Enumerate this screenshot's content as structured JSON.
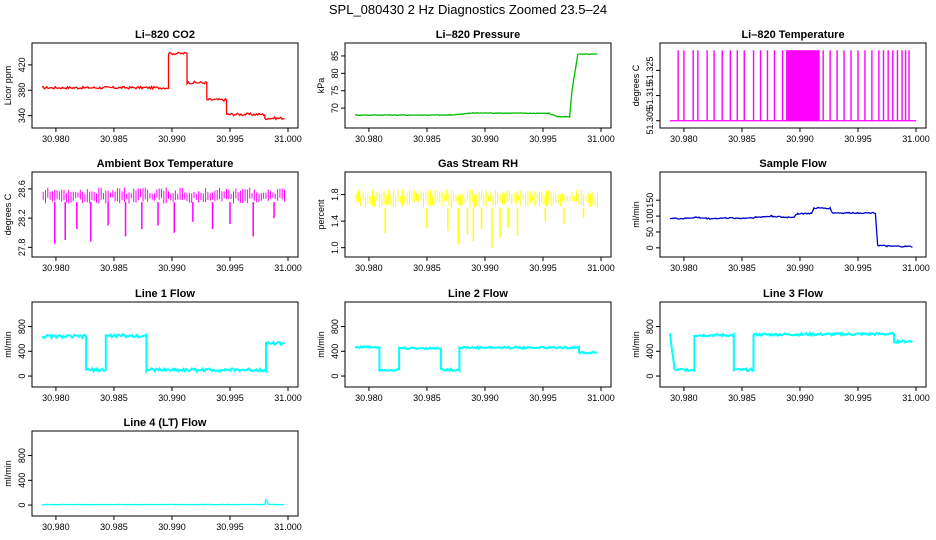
{
  "page": {
    "title": "SPL_080430  2 Hz Diagnostics Zoomed 23.5–24"
  },
  "chart_data": [
    {
      "id": "co2",
      "type": "line",
      "title": "Li–820 CO2",
      "ylabel": "Licor ppm",
      "color": "#ff0000",
      "xlim": [
        30.9788,
        31.0
      ],
      "xticks": [
        30.98,
        30.985,
        30.99,
        30.995,
        31.0
      ],
      "xtick_labels": [
        "30.980",
        "30.985",
        "30.990",
        "30.995",
        "31.000"
      ],
      "ylim": [
        330,
        445
      ],
      "yticks": [
        340,
        380,
        420
      ],
      "ytick_labels": [
        "340",
        "380",
        "420"
      ],
      "series": [
        {
          "name": "CO2",
          "noise": 2,
          "points": [
            [
              30.9788,
              384
            ],
            [
              30.9897,
              384
            ],
            [
              30.9897,
              438
            ],
            [
              30.9913,
              438
            ],
            [
              30.9913,
              392
            ],
            [
              30.993,
              392
            ],
            [
              30.993,
              365
            ],
            [
              30.9947,
              365
            ],
            [
              30.9947,
              342
            ],
            [
              30.998,
              342
            ],
            [
              30.998,
              336
            ],
            [
              30.9997,
              336
            ]
          ]
        }
      ]
    },
    {
      "id": "pressure",
      "type": "line",
      "title": "Li–820 Pressure",
      "ylabel": "kPa",
      "color": "#00bb00",
      "xlim": [
        30.9788,
        31.0
      ],
      "xticks": [
        30.98,
        30.985,
        30.99,
        30.995,
        31.0
      ],
      "xtick_labels": [
        "30.980",
        "30.985",
        "30.990",
        "30.995",
        "31.000"
      ],
      "ylim": [
        66,
        87
      ],
      "yticks": [
        70,
        75,
        80,
        85
      ],
      "ytick_labels": [
        "70",
        "75",
        "80",
        "85"
      ],
      "series": [
        {
          "name": "Pressure",
          "noise": 0.1,
          "points": [
            [
              30.9788,
              68
            ],
            [
              30.987,
              68
            ],
            [
              30.989,
              68.6
            ],
            [
              30.9955,
              68.5
            ],
            [
              30.9963,
              67.5
            ],
            [
              30.9973,
              67.5
            ],
            [
              30.9975,
              75
            ],
            [
              30.998,
              85.5
            ],
            [
              30.9997,
              85.5
            ]
          ]
        }
      ]
    },
    {
      "id": "li820temp",
      "type": "line",
      "title": "Li–820 Temperature",
      "ylabel": "degrees C",
      "color": "#ff00ff",
      "xlim": [
        30.9788,
        31.0
      ],
      "xticks": [
        30.98,
        30.985,
        30.99,
        30.995,
        31.0
      ],
      "xtick_labels": [
        "30.980",
        "30.985",
        "30.990",
        "30.995",
        "31.000"
      ],
      "ylim": [
        51.3045,
        51.3335
      ],
      "yticks": [
        51.305,
        51.315,
        51.325
      ],
      "ytick_labels": [
        "51.305",
        "51.315",
        "51.325"
      ],
      "series": [
        {
          "name": "Temperature",
          "spikes_low": 51.305,
          "spikes_high": 51.333,
          "spikes": [
            30.9795,
            30.98,
            30.9808,
            30.9812,
            30.982,
            30.9826,
            30.9833,
            30.984,
            30.9846,
            30.9852,
            30.986,
            30.9866,
            30.9872,
            30.9878,
            30.9885,
            30.989,
            30.9893,
            30.9896,
            30.9899,
            30.9902,
            30.9905,
            30.9908,
            30.9911,
            30.9914,
            30.992,
            30.9926,
            30.9932,
            30.9938,
            30.9944,
            30.995,
            30.9956,
            30.9962,
            30.9968,
            30.9972,
            30.9976,
            30.998,
            30.9984,
            30.9988,
            30.9991,
            30.9994
          ]
        }
      ]
    },
    {
      "id": "boxtemp",
      "type": "line",
      "title": "Ambient Box Temperature",
      "ylabel": "degrees C",
      "color": "#ff00ff",
      "xlim": [
        30.9788,
        31.0
      ],
      "xticks": [
        30.98,
        30.985,
        30.99,
        30.995,
        31.0
      ],
      "xtick_labels": [
        "30.980",
        "30.985",
        "30.990",
        "30.995",
        "31.000"
      ],
      "ylim": [
        27.75,
        28.75
      ],
      "yticks": [
        27.8,
        28.2,
        28.6
      ],
      "ytick_labels": [
        "27.8",
        "28.2",
        "28.6"
      ],
      "series": [
        {
          "name": "Box Temperature",
          "band": [
            28.4,
            28.62,
            0.0002
          ],
          "noise": 0.05,
          "points": [
            [
              30.9788,
              28.5
            ],
            [
              30.9997,
              28.5
            ]
          ],
          "spikes_from": 28.42,
          "spikes": [
            [
              30.9799,
              27.85
            ],
            [
              30.9808,
              27.9
            ],
            [
              30.9818,
              28.05
            ],
            [
              30.983,
              27.88
            ],
            [
              30.9845,
              28.1
            ],
            [
              30.986,
              27.95
            ],
            [
              30.9874,
              28.05
            ],
            [
              30.9888,
              28.1
            ],
            [
              30.9902,
              28.0
            ],
            [
              30.9918,
              28.15
            ],
            [
              30.9935,
              28.05
            ],
            [
              30.995,
              28.12
            ],
            [
              30.997,
              27.95
            ],
            [
              30.9988,
              28.2
            ]
          ]
        }
      ]
    },
    {
      "id": "rh",
      "type": "line",
      "title": "Gas Stream RH",
      "ylabel": "percent",
      "color": "#ffff00",
      "xlim": [
        30.9788,
        31.0
      ],
      "xticks": [
        30.98,
        30.985,
        30.99,
        30.995,
        31.0
      ],
      "xtick_labels": [
        "30.980",
        "30.985",
        "30.990",
        "30.995",
        "31.000"
      ],
      "ylim": [
        0.95,
        2.05
      ],
      "yticks": [
        1.0,
        1.4,
        1.8
      ],
      "ytick_labels": [
        "1.0",
        "1.4",
        "1.8"
      ],
      "series": [
        {
          "name": "RH",
          "band": [
            1.6,
            1.88,
            0.0002
          ],
          "noise": 0.05,
          "points": [
            [
              30.9788,
              1.72
            ],
            [
              30.9997,
              1.72
            ]
          ],
          "spikes_from": 1.6,
          "spikes": [
            [
              30.9814,
              1.22
            ],
            [
              30.985,
              1.3
            ],
            [
              30.9868,
              1.25
            ],
            [
              30.9877,
              1.05
            ],
            [
              30.9885,
              1.2
            ],
            [
              30.989,
              1.1
            ],
            [
              30.9897,
              1.28
            ],
            [
              30.9906,
              1.0
            ],
            [
              30.9913,
              1.15
            ],
            [
              30.992,
              1.3
            ],
            [
              30.9928,
              1.18
            ],
            [
              30.9952,
              1.4
            ],
            [
              30.9968,
              1.35
            ],
            [
              30.9985,
              1.45
            ]
          ]
        }
      ]
    },
    {
      "id": "sampleflow",
      "type": "line",
      "title": "Sample Flow",
      "ylabel": "ml/min",
      "color": "#0000cc",
      "xlim": [
        30.9788,
        31.0
      ],
      "xticks": [
        30.98,
        30.985,
        30.99,
        30.995,
        31.0
      ],
      "xtick_labels": [
        "30.980",
        "30.985",
        "30.990",
        "30.995",
        "31.000"
      ],
      "ylim": [
        -10,
        220
      ],
      "yticks": [
        0,
        50,
        100,
        150
      ],
      "ytick_labels": [
        "0",
        "50",
        "100",
        "150"
      ],
      "series": [
        {
          "name": "Sample Flow",
          "noise": 2,
          "points": [
            [
              30.9788,
              93
            ],
            [
              30.98,
              92
            ],
            [
              30.981,
              96
            ],
            [
              30.9822,
              92
            ],
            [
              30.9838,
              94
            ],
            [
              30.985,
              93
            ],
            [
              30.9862,
              96
            ],
            [
              30.9876,
              100
            ],
            [
              30.9886,
              96
            ],
            [
              30.9895,
              97
            ],
            [
              30.9898,
              108
            ],
            [
              30.991,
              108
            ],
            [
              30.9912,
              125
            ],
            [
              30.9926,
              125
            ],
            [
              30.9928,
              110
            ],
            [
              30.9965,
              110
            ],
            [
              30.9967,
              8
            ],
            [
              30.9975,
              5
            ],
            [
              30.9997,
              4
            ]
          ]
        }
      ]
    },
    {
      "id": "line1",
      "type": "line",
      "title": "Line 1 Flow",
      "ylabel": "ml/min",
      "color": "#00ffff",
      "xlim": [
        30.9788,
        31.0
      ],
      "xticks": [
        30.98,
        30.985,
        30.99,
        30.995,
        31.0
      ],
      "xtick_labels": [
        "30.980",
        "30.985",
        "30.990",
        "30.995",
        "31.000"
      ],
      "ylim": [
        -80,
        1100
      ],
      "yticks": [
        0,
        400,
        800
      ],
      "ytick_labels": [
        "0",
        "400",
        "800"
      ],
      "series": [
        {
          "name": "Line 1",
          "noise": 25,
          "points": [
            [
              30.9788,
              640
            ],
            [
              30.9826,
              640
            ],
            [
              30.9826,
              100
            ],
            [
              30.9843,
              100
            ],
            [
              30.9843,
              650
            ],
            [
              30.9878,
              650
            ],
            [
              30.9878,
              100
            ],
            [
              30.9981,
              100
            ],
            [
              30.9981,
              530
            ],
            [
              30.9997,
              530
            ]
          ]
        }
      ]
    },
    {
      "id": "line2",
      "type": "line",
      "title": "Line 2 Flow",
      "ylabel": "ml/min",
      "color": "#00ffff",
      "xlim": [
        30.9788,
        31.0
      ],
      "xticks": [
        30.98,
        30.985,
        30.99,
        30.995,
        31.0
      ],
      "xtick_labels": [
        "30.980",
        "30.985",
        "30.990",
        "30.995",
        "31.000"
      ],
      "ylim": [
        -80,
        1100
      ],
      "yticks": [
        0,
        400,
        800
      ],
      "ytick_labels": [
        "0",
        "400",
        "800"
      ],
      "series": [
        {
          "name": "Line 2",
          "noise": 15,
          "points": [
            [
              30.9788,
              470
            ],
            [
              30.9809,
              470
            ],
            [
              30.9809,
              100
            ],
            [
              30.9826,
              100
            ],
            [
              30.9826,
              450
            ],
            [
              30.9862,
              450
            ],
            [
              30.9862,
              100
            ],
            [
              30.9878,
              100
            ],
            [
              30.9878,
              460
            ],
            [
              30.9981,
              460
            ],
            [
              30.9981,
              380
            ],
            [
              30.9997,
              380
            ]
          ]
        }
      ]
    },
    {
      "id": "line3",
      "type": "line",
      "title": "Line 3 Flow",
      "ylabel": "ml/min",
      "color": "#00ffff",
      "xlim": [
        30.9788,
        31.0
      ],
      "xticks": [
        30.98,
        30.985,
        30.99,
        30.995,
        31.0
      ],
      "xtick_labels": [
        "30.980",
        "30.985",
        "30.990",
        "30.995",
        "31.000"
      ],
      "ylim": [
        -80,
        1100
      ],
      "yticks": [
        0,
        400,
        800
      ],
      "ytick_labels": [
        "0",
        "400",
        "800"
      ],
      "series": [
        {
          "name": "Line 3",
          "noise": 20,
          "points": [
            [
              30.9788,
              680
            ],
            [
              30.9792,
              100
            ],
            [
              30.9809,
              100
            ],
            [
              30.9809,
              660
            ],
            [
              30.9843,
              660
            ],
            [
              30.9843,
              100
            ],
            [
              30.986,
              100
            ],
            [
              30.986,
              670
            ],
            [
              30.9981,
              680
            ],
            [
              30.9981,
              560
            ],
            [
              30.9997,
              560
            ]
          ]
        }
      ]
    },
    {
      "id": "line4",
      "type": "line",
      "title": "Line 4 (LT) Flow",
      "ylabel": "ml/min",
      "color": "#00ffff",
      "xlim": [
        30.9788,
        31.0
      ],
      "xticks": [
        30.98,
        30.985,
        30.99,
        30.995,
        31.0
      ],
      "xtick_labels": [
        "30.980",
        "30.985",
        "30.990",
        "30.995",
        "31.000"
      ],
      "ylim": [
        -80,
        1100
      ],
      "yticks": [
        0,
        400,
        800
      ],
      "ytick_labels": [
        "0",
        "400",
        "800"
      ],
      "series": [
        {
          "name": "Line 4",
          "noise": 3,
          "points": [
            [
              30.9788,
              8
            ],
            [
              30.998,
              8
            ],
            [
              30.9981,
              100
            ],
            [
              30.9983,
              10
            ],
            [
              30.9997,
              8
            ]
          ]
        }
      ]
    }
  ]
}
